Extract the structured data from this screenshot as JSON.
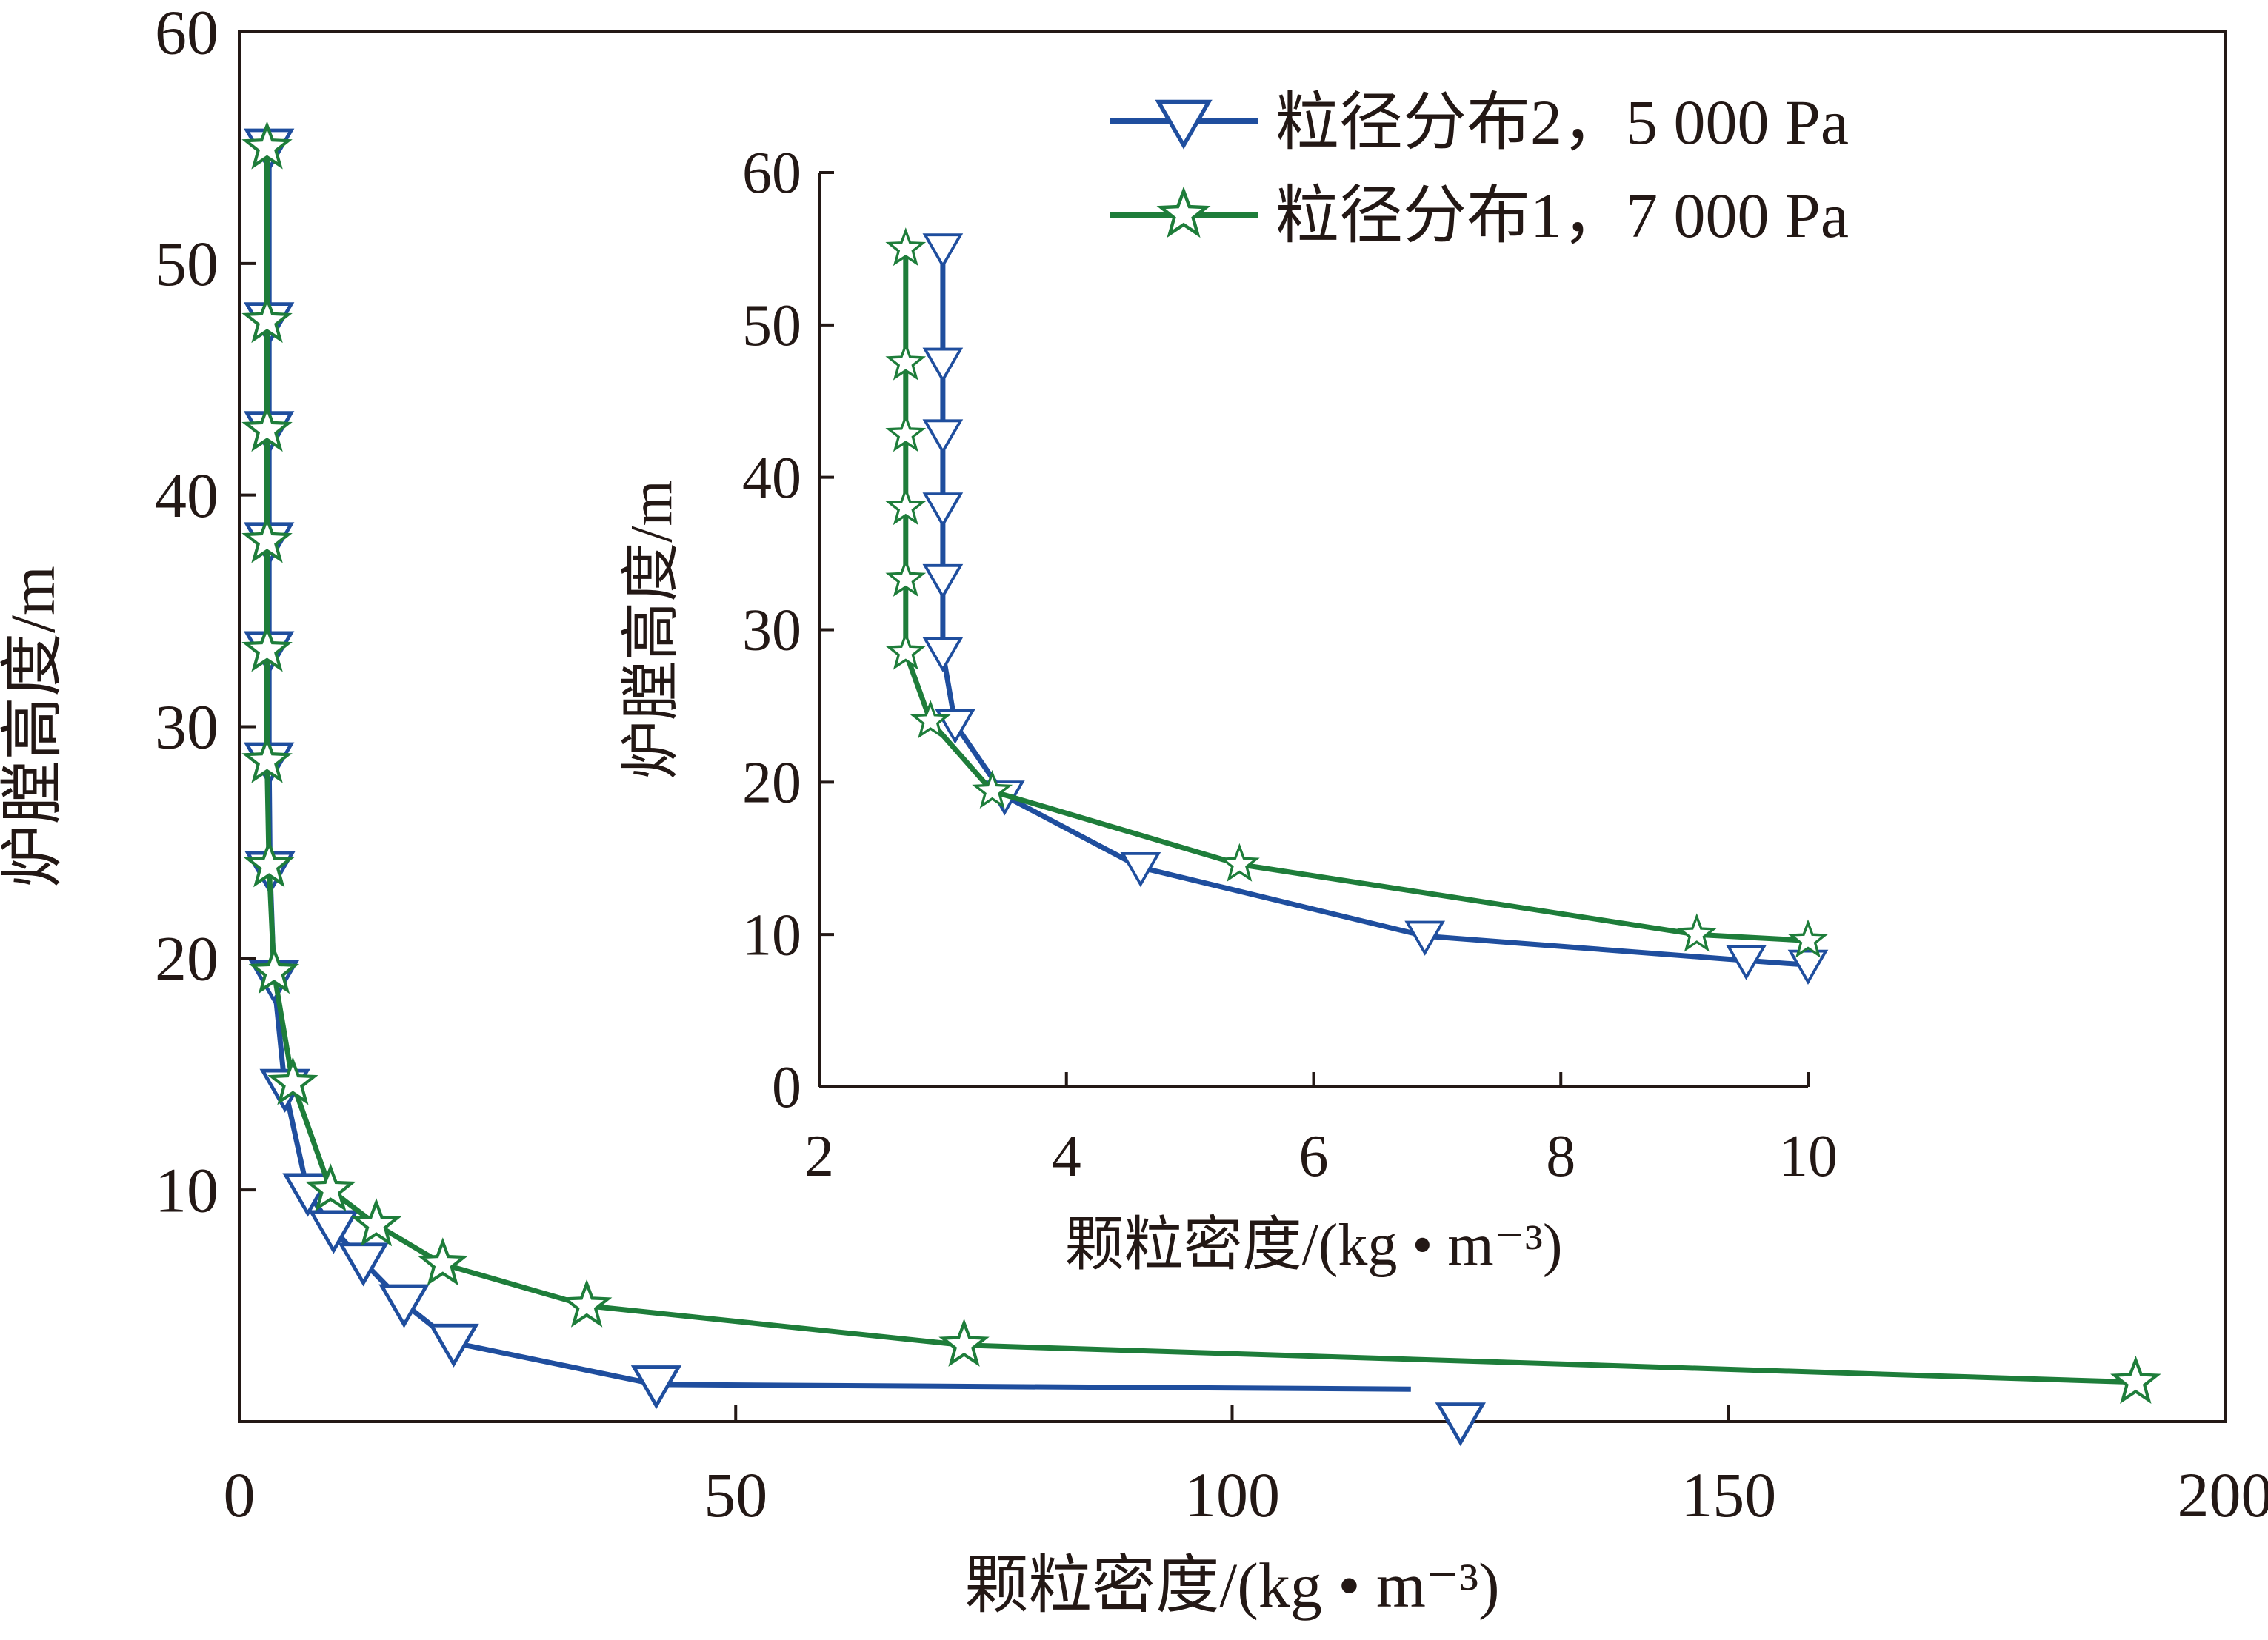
{
  "chart_data": [
    {
      "type": "line",
      "role": "main",
      "xlabel": "颗粒密度/(kg • m⁻³)",
      "ylabel": "炉膛高度/m",
      "xlim": [
        0,
        200
      ],
      "ylim": [
        0,
        60
      ],
      "xticks": [
        0,
        50,
        100,
        150,
        200
      ],
      "yticks": [
        0,
        10,
        20,
        30,
        40,
        50,
        60
      ],
      "xtick_labels": [
        "0",
        "50",
        "100",
        "150",
        "200"
      ],
      "ytick_labels": [
        "",
        "10",
        "20",
        "30",
        "40",
        "50",
        "60"
      ],
      "grid": false,
      "legend_position": "top-right",
      "series": [
        {
          "name": "粒径分布2，5 000 Pa",
          "color": "#1f4e9e",
          "marker": "triangle-down-open",
          "points": [
            [
              3.0,
              55.0
            ],
            [
              3.0,
              47.5
            ],
            [
              3.0,
              42.8
            ],
            [
              3.0,
              38.0
            ],
            [
              3.0,
              33.3
            ],
            [
              3.0,
              28.5
            ],
            [
              3.1,
              23.8
            ],
            [
              3.5,
              19.1
            ],
            [
              4.6,
              14.4
            ],
            [
              6.9,
              9.9
            ],
            [
              9.5,
              8.3
            ],
            [
              12.5,
              6.9
            ],
            [
              16.6,
              5.1
            ],
            [
              21.6,
              3.4
            ],
            [
              42.0,
              1.6
            ],
            [
              123.0,
              0.0
            ]
          ],
          "line_end": [
            [
              42.0,
              1.6
            ],
            [
              118.0,
              1.4
            ]
          ]
        },
        {
          "name": "粒径分布1，7 000 Pa",
          "color": "#1e7d3a",
          "marker": "star-open",
          "points": [
            [
              2.8,
              55.0
            ],
            [
              2.8,
              47.5
            ],
            [
              2.8,
              42.8
            ],
            [
              2.8,
              38.0
            ],
            [
              2.8,
              33.3
            ],
            [
              2.8,
              28.5
            ],
            [
              3.0,
              24.0
            ],
            [
              3.5,
              19.4
            ],
            [
              5.4,
              14.6
            ],
            [
              9.2,
              10.0
            ],
            [
              13.8,
              8.5
            ],
            [
              20.5,
              6.8
            ],
            [
              35.0,
              5.0
            ],
            [
              73.0,
              3.3
            ],
            [
              191.0,
              1.7
            ]
          ]
        }
      ]
    },
    {
      "type": "line",
      "role": "inset",
      "xlabel": "颗粒密度/(kg • m⁻³)",
      "ylabel": "炉膛高度/m",
      "xlim": [
        2,
        10
      ],
      "ylim": [
        0,
        60
      ],
      "xticks": [
        2,
        4,
        6,
        8,
        10
      ],
      "yticks": [
        0,
        10,
        20,
        30,
        40,
        50,
        60
      ],
      "xtick_labels": [
        "2",
        "4",
        "6",
        "8",
        "10"
      ],
      "ytick_labels": [
        "0",
        "10",
        "20",
        "30",
        "40",
        "50",
        "60"
      ],
      "grid": false,
      "series": [
        {
          "name": "粒径分布2，5 000 Pa",
          "color": "#1f4e9e",
          "marker": "triangle-down-open",
          "points": [
            [
              3.0,
              55.0
            ],
            [
              3.0,
              47.5
            ],
            [
              3.0,
              42.8
            ],
            [
              3.0,
              38.0
            ],
            [
              3.0,
              33.3
            ],
            [
              3.0,
              28.5
            ],
            [
              3.1,
              23.8
            ],
            [
              3.5,
              19.1
            ],
            [
              4.6,
              14.4
            ],
            [
              6.9,
              9.9
            ],
            [
              9.5,
              8.3
            ],
            [
              10.0,
              8.0
            ]
          ]
        },
        {
          "name": "粒径分布1，7 000 Pa",
          "color": "#1e7d3a",
          "marker": "star-open",
          "points": [
            [
              2.7,
              55.0
            ],
            [
              2.7,
              47.5
            ],
            [
              2.7,
              42.8
            ],
            [
              2.7,
              38.0
            ],
            [
              2.7,
              33.3
            ],
            [
              2.7,
              28.5
            ],
            [
              2.9,
              24.0
            ],
            [
              3.4,
              19.4
            ],
            [
              5.4,
              14.6
            ],
            [
              9.1,
              10.0
            ],
            [
              10.0,
              9.6
            ]
          ]
        }
      ]
    }
  ],
  "legend": {
    "items": [
      {
        "label": "粒径分布2，5 000 Pa",
        "color": "#1f4e9e",
        "marker": "triangle-down-open"
      },
      {
        "label": "粒径分布1，7 000 Pa",
        "color": "#1e7d3a",
        "marker": "star-open"
      }
    ]
  }
}
